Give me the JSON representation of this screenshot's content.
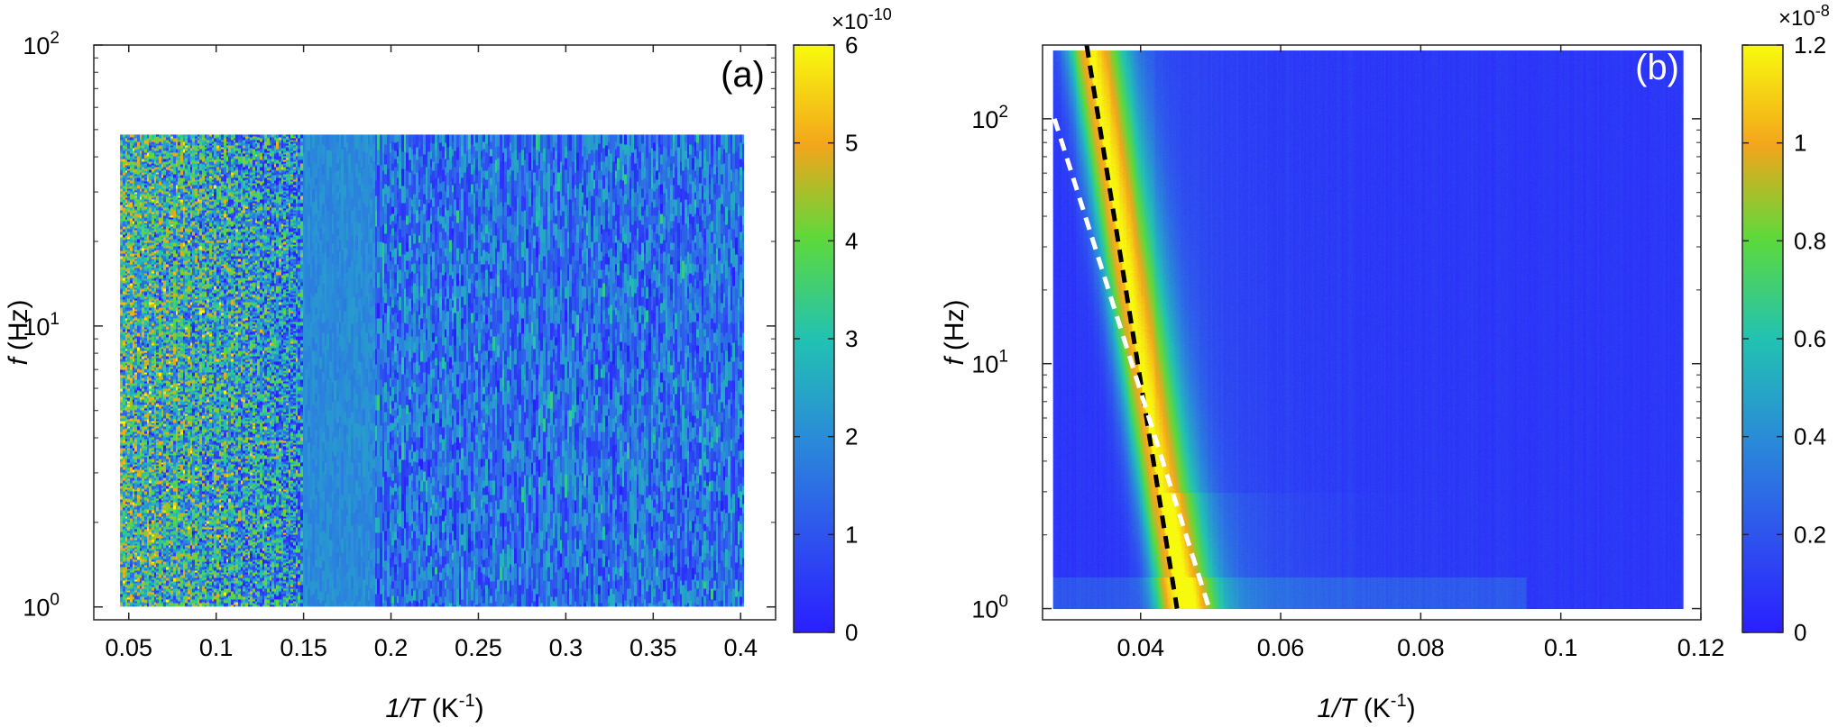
{
  "chart_data": [
    {
      "type": "heatmap",
      "panel_label": "(a)",
      "xlabel_italic": "1/T",
      "xlabel_unit": "(K",
      "xlabel_exp": "-1",
      "xlabel_close": ")",
      "ylabel_italic": "f",
      "ylabel_unit": "(Hz)",
      "xlim": [
        0.03,
        0.42
      ],
      "ylim": [
        0.9,
        100
      ],
      "y_scale": "log",
      "xticks": [
        0.05,
        0.1,
        0.15,
        0.2,
        0.25,
        0.3,
        0.35,
        0.4
      ],
      "xtick_labels": [
        "0.05",
        "0.1",
        "0.15",
        "0.2",
        "0.25",
        "0.3",
        "0.35",
        "0.4"
      ],
      "yticks": [
        1,
        10,
        100
      ],
      "ytick_base": "10",
      "ytick_exps": [
        "0",
        "1",
        "2"
      ],
      "data_extent": {
        "x": [
          0.045,
          0.402
        ],
        "y": [
          1,
          48
        ]
      },
      "colorbar": {
        "range": [
          0,
          6
        ],
        "ticks": [
          0,
          1,
          2,
          3,
          4,
          5,
          6
        ],
        "tick_labels": [
          "0",
          "1",
          "2",
          "3",
          "4",
          "5",
          "6"
        ],
        "multiplier_base": "×10",
        "multiplier_exp": "-10"
      },
      "pattern_description_values": {
        "low_x_region_mean": 3.2,
        "high_x_region_mean": 1.5
      }
    },
    {
      "type": "heatmap",
      "panel_label": "(b)",
      "xlabel_italic": "1/T",
      "xlabel_unit": "(K",
      "xlabel_exp": "-1",
      "xlabel_close": ")",
      "ylabel_italic": "f",
      "ylabel_unit": "(Hz)",
      "xlim": [
        0.026,
        0.12
      ],
      "ylim": [
        0.9,
        200
      ],
      "y_scale": "log",
      "xticks": [
        0.04,
        0.06,
        0.08,
        0.1,
        0.12
      ],
      "xtick_labels": [
        "0.04",
        "0.06",
        "0.08",
        "0.1",
        "0.12"
      ],
      "yticks": [
        1,
        10,
        100
      ],
      "ytick_base": "10",
      "ytick_exps": [
        "0",
        "1",
        "2"
      ],
      "data_extent": {
        "x": [
          0.0275,
          0.1175
        ],
        "y": [
          1,
          190
        ]
      },
      "colorbar": {
        "range": [
          0,
          1.2
        ],
        "ticks": [
          0,
          0.2,
          0.4,
          0.6,
          0.8,
          1,
          1.2
        ],
        "tick_labels": [
          "0",
          "0.2",
          "0.4",
          "0.6",
          "0.8",
          "1",
          "1.2"
        ],
        "multiplier_base": "×10",
        "multiplier_exp": "-8"
      },
      "fit_lines": [
        {
          "color": "#000000",
          "style": "dashed",
          "x": [
            0.0323,
            0.0452
          ],
          "y": [
            200,
            1
          ]
        },
        {
          "color": "#ffffff",
          "style": "dashed",
          "x": [
            0.0277,
            0.0498
          ],
          "y": [
            100,
            1
          ]
        }
      ]
    }
  ]
}
